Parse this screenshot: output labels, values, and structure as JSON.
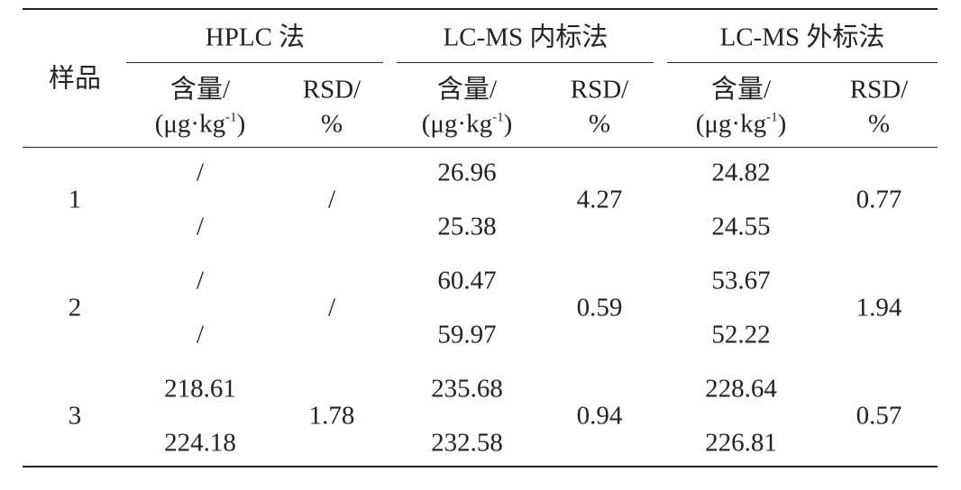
{
  "table": {
    "row_header": "样品",
    "groups": [
      {
        "name": "HPLC 法",
        "content_label": {
          "text": "含量/",
          "unit_open": "(μg·kg",
          "unit_sup": "-1",
          "unit_close": ")"
        },
        "rsd_label": {
          "text": "RSD/",
          "unit": "%"
        }
      },
      {
        "name": "LC-MS 内标法",
        "content_label": {
          "text": "含量/",
          "unit_open": "(μg·kg",
          "unit_sup": "-1",
          "unit_close": ")"
        },
        "rsd_label": {
          "text": "RSD/",
          "unit": "%"
        }
      },
      {
        "name": "LC-MS 外标法",
        "content_label": {
          "text": "含量/",
          "unit_open": "(μg·kg",
          "unit_sup": "-1",
          "unit_close": ")"
        },
        "rsd_label": {
          "text": "RSD/",
          "unit": "%"
        }
      }
    ],
    "rows": [
      {
        "sample": 1,
        "groups": [
          {
            "contents": [
              "/",
              "/"
            ],
            "rsd": "/"
          },
          {
            "contents": [
              26.96,
              25.38
            ],
            "rsd": 4.27
          },
          {
            "contents": [
              24.82,
              24.55
            ],
            "rsd": 0.77
          }
        ]
      },
      {
        "sample": 2,
        "groups": [
          {
            "contents": [
              "/",
              "/"
            ],
            "rsd": "/"
          },
          {
            "contents": [
              60.47,
              59.97
            ],
            "rsd": 0.59
          },
          {
            "contents": [
              53.67,
              52.22
            ],
            "rsd": 1.94
          }
        ]
      },
      {
        "sample": 3,
        "groups": [
          {
            "contents": [
              218.61,
              224.18
            ],
            "rsd": 1.78
          },
          {
            "contents": [
              235.68,
              232.58
            ],
            "rsd": 0.94
          },
          {
            "contents": [
              228.64,
              226.81
            ],
            "rsd": 0.57
          }
        ]
      }
    ]
  }
}
